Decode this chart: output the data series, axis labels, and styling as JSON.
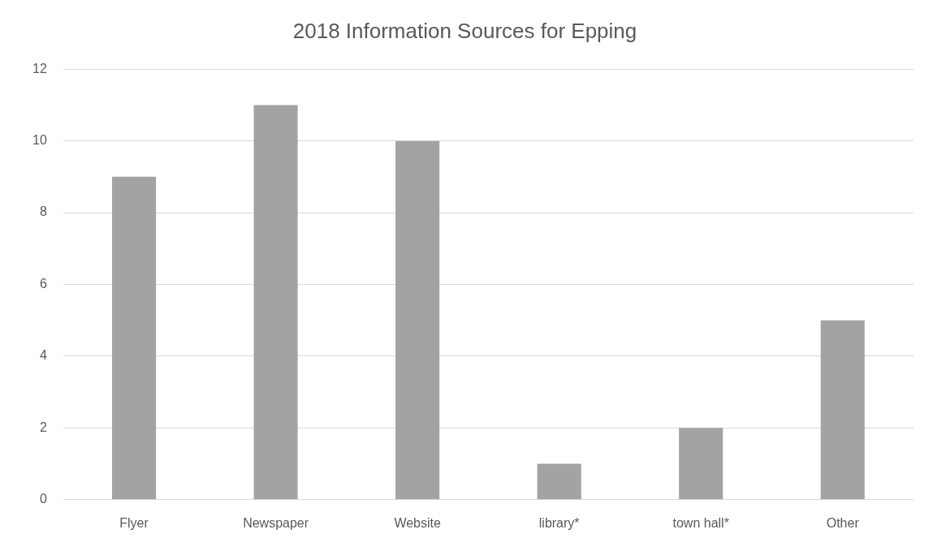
{
  "chart_data": {
    "type": "bar",
    "title": "2018 Information Sources for Epping",
    "categories": [
      "Flyer",
      "Newspaper",
      "Website",
      "library*",
      "town hall*",
      "Other"
    ],
    "values": [
      9,
      11,
      10,
      1,
      2,
      5
    ],
    "color": "#a3a3a3",
    "ylim": [
      0,
      12
    ],
    "yticks": [
      0,
      2,
      4,
      6,
      8,
      10,
      12
    ],
    "grid": "y",
    "legend": false
  }
}
